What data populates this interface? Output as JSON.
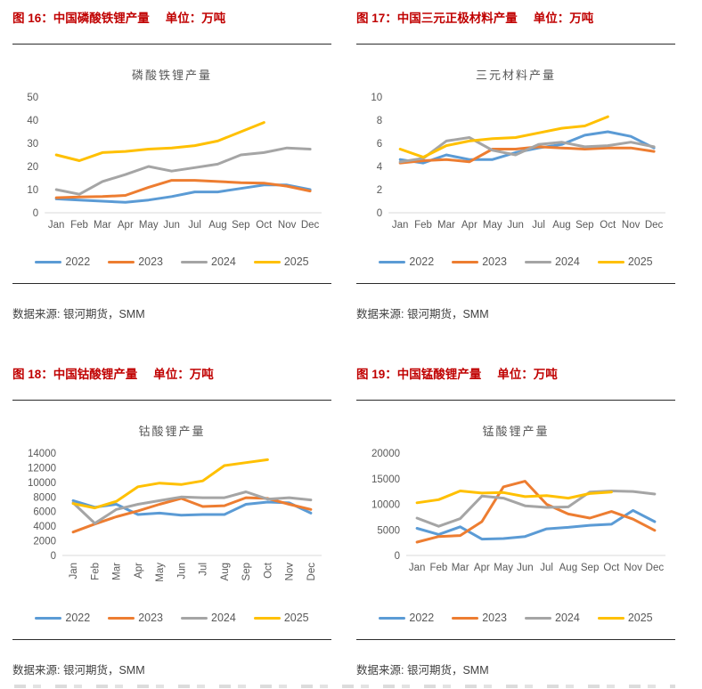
{
  "figures": [
    {
      "label": "图 16：中国磷酸铁锂产量",
      "unit": "单位：万吨",
      "source": "数据来源: 银河期货，SMM"
    },
    {
      "label": "图 17：中国三元正极材料产量",
      "unit": "单位：万吨",
      "source": "数据来源: 银河期货，SMM"
    },
    {
      "label": "图 18：中国钴酸锂产量",
      "unit": "单位：万吨",
      "source": "数据来源: 银河期货，SMM"
    },
    {
      "label": "图 19：中国锰酸锂产量",
      "unit": "单位：万吨",
      "source": "数据来源: 银河期货，SMM"
    }
  ],
  "colors": {
    "series_2022": "#5B9BD5",
    "series_2023": "#ED7D31",
    "series_2024": "#A5A5A5",
    "series_2025": "#FFC000",
    "heading": "#C00000",
    "axis_text": "#595959",
    "baseline": "#D9D9D9"
  },
  "chart_data": [
    {
      "type": "line",
      "title": "磷酸铁锂产量",
      "categories": [
        "Jan",
        "Feb",
        "Mar",
        "Apr",
        "May",
        "Jun",
        "Jul",
        "Aug",
        "Sep",
        "Oct",
        "Nov",
        "Dec"
      ],
      "ylim": [
        0,
        50
      ],
      "yticks": [
        0,
        10,
        20,
        30,
        40,
        50
      ],
      "x_label_rotation": 0,
      "grid": false,
      "legend_position": "bottom",
      "series": [
        {
          "name": "2022",
          "color": "#5B9BD5",
          "values": [
            6,
            5.5,
            5,
            4.5,
            5.5,
            7,
            9,
            9,
            10.5,
            12,
            12,
            10
          ]
        },
        {
          "name": "2023",
          "color": "#ED7D31",
          "values": [
            6.5,
            6.8,
            7,
            7.5,
            11,
            14,
            14,
            13.5,
            13,
            12.8,
            11.5,
            9.4
          ]
        },
        {
          "name": "2024",
          "color": "#A5A5A5",
          "values": [
            10,
            8,
            13.5,
            16.5,
            20,
            18,
            19.5,
            21,
            25,
            26,
            28,
            27.5
          ]
        },
        {
          "name": "2025",
          "color": "#FFC000",
          "values": [
            25,
            22.5,
            26,
            26.5,
            27.5,
            28,
            29,
            31,
            35,
            39,
            null,
            null
          ]
        }
      ]
    },
    {
      "type": "line",
      "title": "三元材料产量",
      "categories": [
        "Jan",
        "Feb",
        "Mar",
        "Apr",
        "May",
        "Jun",
        "Jul",
        "Aug",
        "Sep",
        "Oct",
        "Nov",
        "Dec"
      ],
      "ylim": [
        0,
        10
      ],
      "yticks": [
        0,
        2,
        4,
        6,
        8,
        10
      ],
      "x_label_rotation": 0,
      "grid": false,
      "legend_position": "bottom",
      "series": [
        {
          "name": "2022",
          "color": "#5B9BD5",
          "values": [
            4.6,
            4.3,
            5.0,
            4.6,
            4.6,
            5.2,
            5.6,
            5.9,
            6.7,
            7.0,
            6.6,
            5.6
          ]
        },
        {
          "name": "2023",
          "color": "#ED7D31",
          "values": [
            4.3,
            4.5,
            4.6,
            4.4,
            5.5,
            5.5,
            5.7,
            5.6,
            5.5,
            5.6,
            5.6,
            5.3
          ]
        },
        {
          "name": "2024",
          "color": "#A5A5A5",
          "values": [
            4.4,
            4.7,
            6.2,
            6.5,
            5.4,
            5.0,
            5.9,
            6.1,
            5.7,
            5.8,
            6.1,
            5.7
          ]
        },
        {
          "name": "2025",
          "color": "#FFC000",
          "values": [
            5.5,
            4.8,
            5.8,
            6.2,
            6.4,
            6.5,
            6.9,
            7.3,
            7.5,
            8.3,
            null,
            null
          ]
        }
      ]
    },
    {
      "type": "line",
      "title": "钴酸锂产量",
      "categories": [
        "Jan",
        "Feb",
        "Mar",
        "Apr",
        "May",
        "Jun",
        "Jul",
        "Aug",
        "Sep",
        "Oct",
        "Nov",
        "Dec"
      ],
      "ylim": [
        0,
        14000
      ],
      "yticks": [
        0,
        2000,
        4000,
        6000,
        8000,
        10000,
        12000,
        14000
      ],
      "x_label_rotation": 90,
      "grid": false,
      "legend_position": "bottom",
      "series": [
        {
          "name": "2022",
          "color": "#5B9BD5",
          "values": [
            7500,
            6600,
            7000,
            5600,
            5800,
            5500,
            5600,
            5600,
            7000,
            7300,
            7200,
            5800
          ]
        },
        {
          "name": "2023",
          "color": "#ED7D31",
          "values": [
            3200,
            4300,
            5300,
            6100,
            7000,
            7800,
            6700,
            6800,
            7900,
            7800,
            7000,
            6300
          ]
        },
        {
          "name": "2024",
          "color": "#A5A5A5",
          "values": [
            7200,
            4400,
            6300,
            7000,
            7500,
            8000,
            7900,
            7900,
            8700,
            7700,
            7900,
            7600
          ]
        },
        {
          "name": "2025",
          "color": "#FFC000",
          "values": [
            7100,
            6500,
            7400,
            9400,
            9900,
            9700,
            10200,
            12300,
            12700,
            13100,
            null,
            null
          ]
        }
      ]
    },
    {
      "type": "line",
      "title": "锰酸锂产量",
      "categories": [
        "Jan",
        "Feb",
        "Mar",
        "Apr",
        "May",
        "Jun",
        "Jul",
        "Aug",
        "Sep",
        "Oct",
        "Nov",
        "Dec"
      ],
      "ylim": [
        0,
        20000
      ],
      "yticks": [
        0,
        5000,
        10000,
        15000,
        20000
      ],
      "x_label_rotation": 0,
      "grid": false,
      "legend_position": "bottom",
      "series": [
        {
          "name": "2022",
          "color": "#5B9BD5",
          "values": [
            5300,
            4100,
            5600,
            3200,
            3300,
            3700,
            5200,
            5500,
            5900,
            6100,
            8800,
            6600
          ]
        },
        {
          "name": "2023",
          "color": "#ED7D31",
          "values": [
            2600,
            3700,
            3900,
            6600,
            13400,
            14500,
            10000,
            8100,
            7300,
            8600,
            7100,
            4900
          ]
        },
        {
          "name": "2024",
          "color": "#A5A5A5",
          "values": [
            7300,
            5700,
            7200,
            11600,
            11200,
            9700,
            9400,
            9500,
            12400,
            12600,
            12500,
            12000
          ]
        },
        {
          "name": "2025",
          "color": "#FFC000",
          "values": [
            10300,
            10900,
            12600,
            12200,
            12300,
            11500,
            11700,
            11200,
            12100,
            12400,
            null,
            null
          ]
        }
      ]
    }
  ]
}
